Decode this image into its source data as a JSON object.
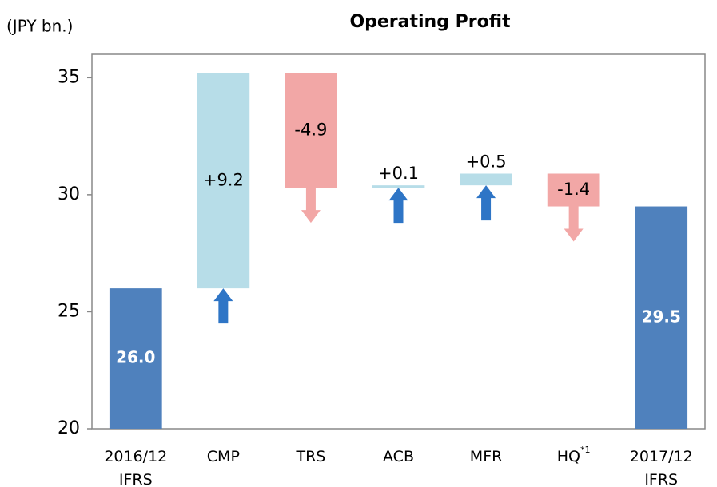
{
  "chart_data": {
    "type": "waterfall",
    "title": "Operating Profit",
    "y_label": "(JPY bn.)",
    "categories": [
      "2016/12\nIFRS",
      "CMP",
      "TRS",
      "ACB",
      "MFR",
      "HQ",
      "2017/12\nIFRS"
    ],
    "hq_footnote": "*1",
    "values": [
      26.0,
      9.2,
      -4.9,
      0.1,
      0.5,
      -1.4,
      29.5
    ],
    "value_labels": [
      "26.0",
      "+9.2",
      "-4.9",
      "+0.1",
      "+0.5",
      "-1.4",
      "29.5"
    ],
    "totals": [
      true,
      false,
      false,
      false,
      false,
      false,
      true
    ],
    "colors": {
      "total": "#4f81bd",
      "increase": "#b7dde8",
      "decrease": "#f2a7a6",
      "arrow_up": "#2e75c6",
      "arrow_down": "#f2a7a6"
    },
    "ylim": [
      20,
      36
    ],
    "yticks": [
      20,
      25,
      30,
      35
    ]
  }
}
